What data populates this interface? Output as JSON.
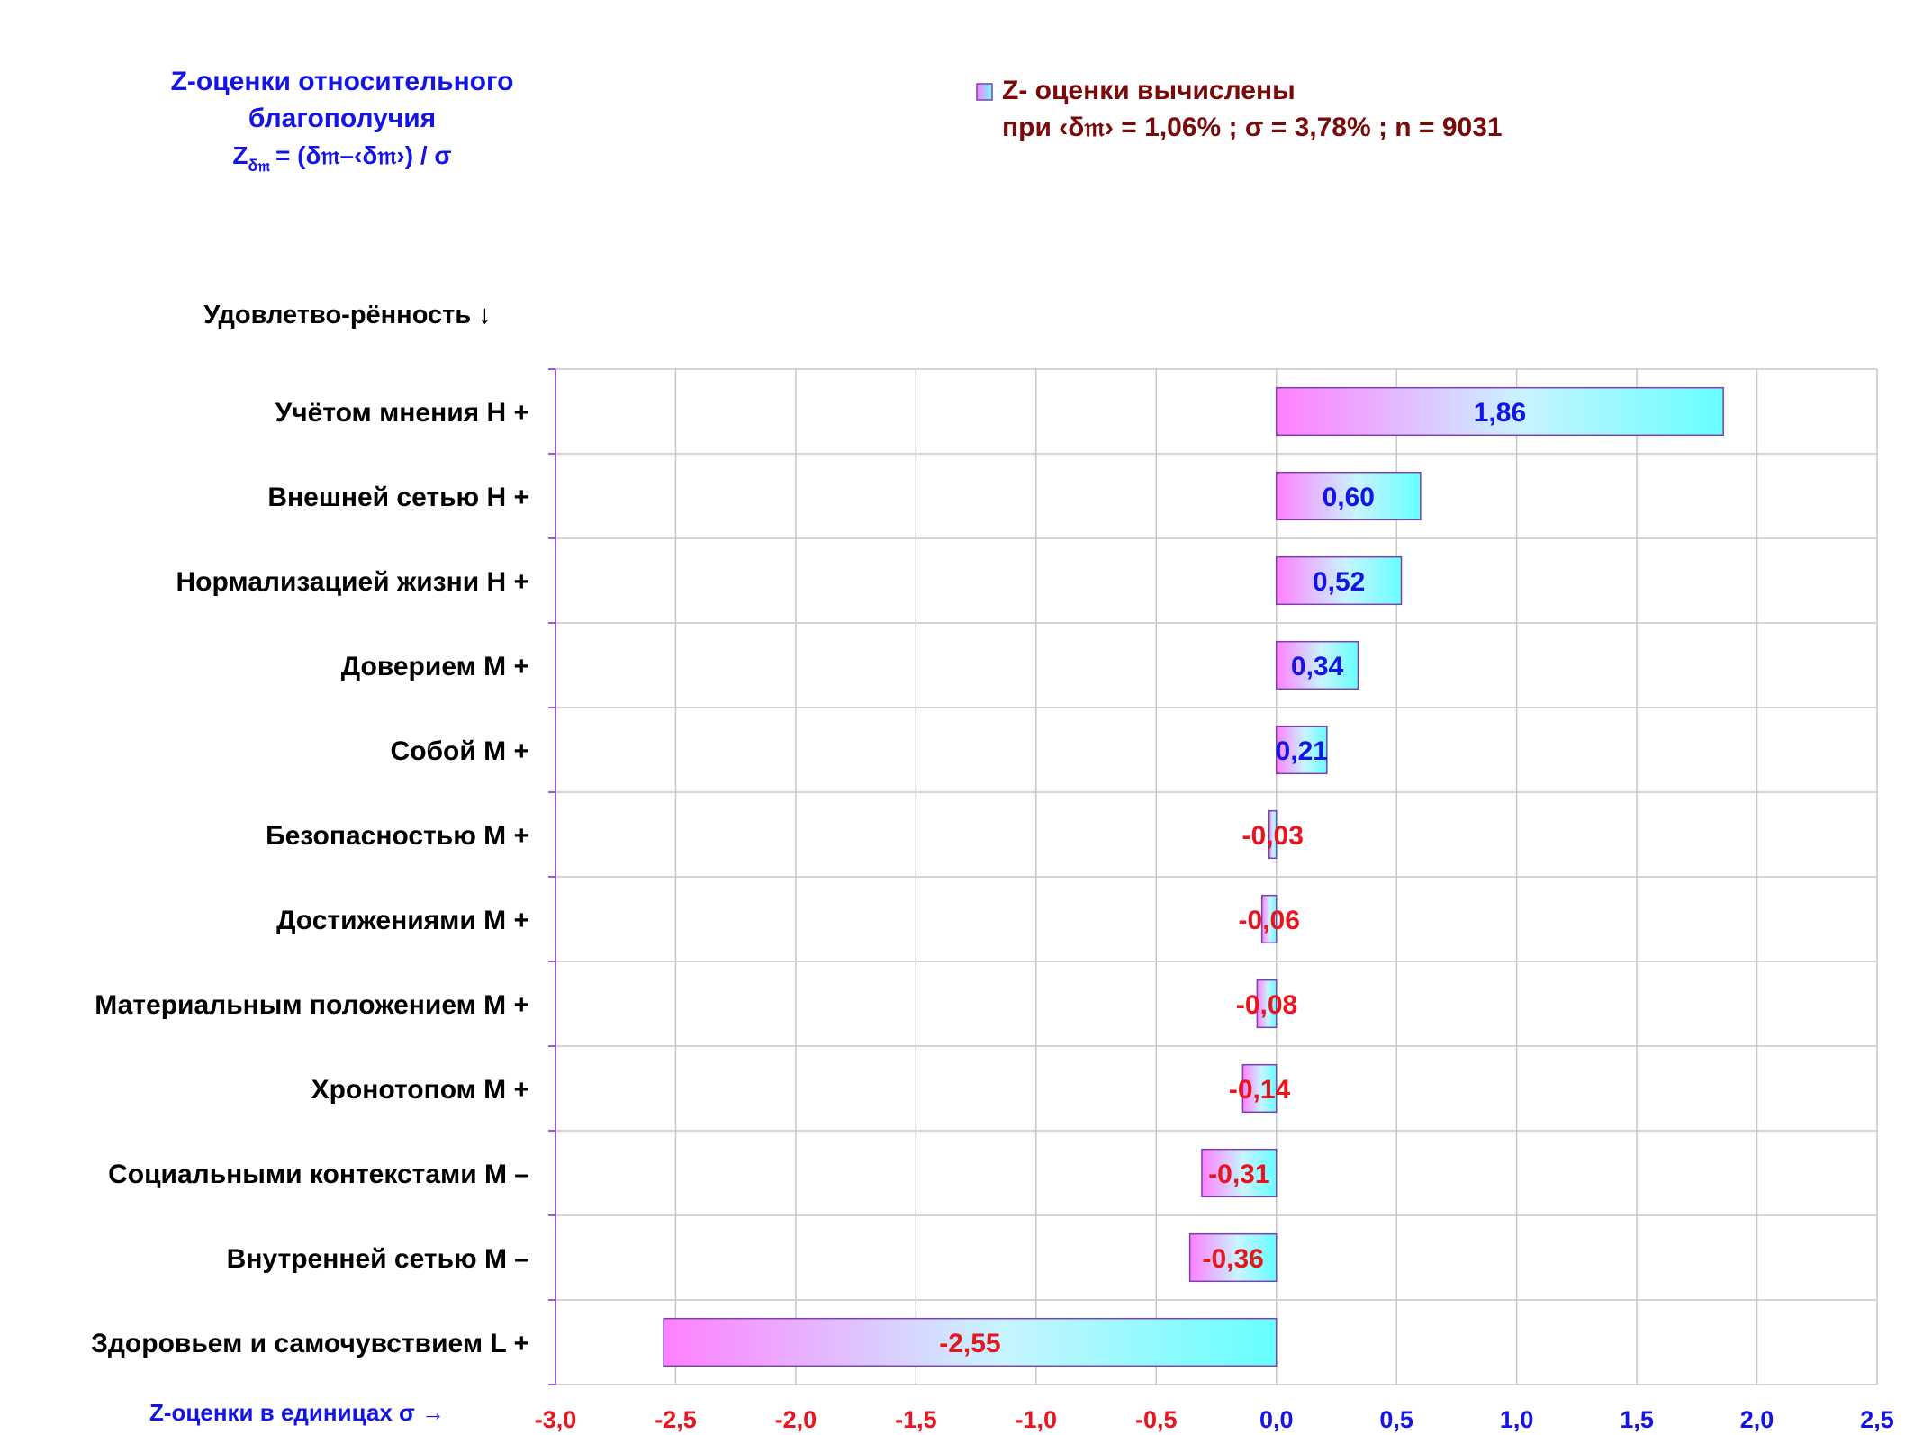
{
  "title": {
    "line1": "Z-оценки  относительного",
    "line2": "благополучия",
    "formula_z": "Z",
    "formula_sub": "δ𝔪",
    "formula_rest": "= (δ𝔪–‹δ𝔪›)  / σ"
  },
  "legend": {
    "line1": "Z- оценки вычислены",
    "line2": "при ‹δ𝔪› = 1,06% ; σ = 3,78% ; n = 9031",
    "placement": "top-right"
  },
  "colors": {
    "bar_start": "#ff80ff",
    "bar_end": "#66ffff",
    "bar_border": "#7a3fb0",
    "positive_text": "#1414e6",
    "negative_text": "#e8141e",
    "grid": "#c8c8c8",
    "axis": "#9a5fc8",
    "legend_text": "#7a0a0a"
  },
  "chart_data": {
    "type": "bar",
    "orientation": "horizontal",
    "ylabel": "Удовлетво-рённость ↓",
    "xlabel": "Z-оценки в единицах σ →",
    "xlim": [
      -3.0,
      2.5
    ],
    "xticks": [
      {
        "value": -3.0,
        "label": "-3,0"
      },
      {
        "value": -2.5,
        "label": "-2,5"
      },
      {
        "value": -2.0,
        "label": "-2,0"
      },
      {
        "value": -1.5,
        "label": "-1,5"
      },
      {
        "value": -1.0,
        "label": "-1,0"
      },
      {
        "value": -0.5,
        "label": "-0,5"
      },
      {
        "value": 0.0,
        "label": "0,0"
      },
      {
        "value": 0.5,
        "label": "0,5"
      },
      {
        "value": 1.0,
        "label": "1,0"
      },
      {
        "value": 1.5,
        "label": "1,5"
      },
      {
        "value": 2.0,
        "label": "2,0"
      },
      {
        "value": 2.5,
        "label": "2,5"
      }
    ],
    "grid": true,
    "categories": [
      "Учётом мнения  Н +",
      "Внешней сетью  Н +",
      "Нормализацией жизни  Н +",
      "Доверием  М +",
      "Собой  М +",
      "Безопасностью  М +",
      "Достижениями  М +",
      "Материальным положением  М +",
      "Хронотопом  М +",
      "Социальными контекстами  М –",
      "Внутренней сетью  М –",
      "Здоровьем и самочувствием  L +"
    ],
    "values": [
      1.86,
      0.6,
      0.52,
      0.34,
      0.21,
      -0.03,
      -0.06,
      -0.08,
      -0.14,
      -0.31,
      -0.36,
      -2.55
    ],
    "value_labels": [
      "1,86",
      "0,60",
      "0,52",
      "0,34",
      "0,21",
      "-0,03",
      "-0,06",
      "-0,08",
      "-0,14",
      "-0,31",
      "-0,36",
      "-2,55"
    ],
    "series": [
      {
        "name": "Z- оценки вычислены",
        "values": [
          1.86,
          0.6,
          0.52,
          0.34,
          0.21,
          -0.03,
          -0.06,
          -0.08,
          -0.14,
          -0.31,
          -0.36,
          -2.55
        ]
      }
    ]
  }
}
